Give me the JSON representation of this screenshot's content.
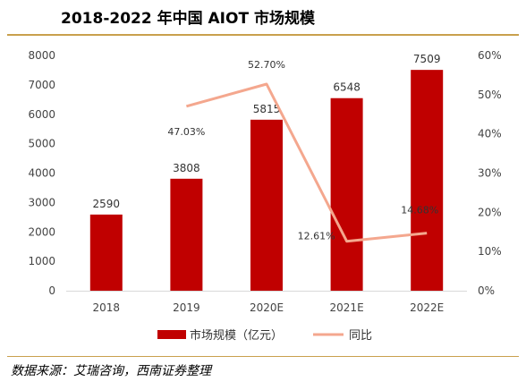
{
  "title": "2018-2022 年中国 AIOT 市场规模",
  "source": "数据来源：艾瑞咨询，西南证券整理",
  "colors": {
    "bar": "#c00000",
    "line": "#f4a78e",
    "rule": "#c9a04d"
  },
  "chart_data": {
    "type": "bar",
    "categories": [
      "2018",
      "2019",
      "2020E",
      "2021E",
      "2022E"
    ],
    "series": [
      {
        "name": "市场规模（亿元）",
        "type": "bar",
        "axis": "left",
        "values": [
          2590,
          3808,
          5815,
          6548,
          7509
        ],
        "labels": [
          "2590",
          "3808",
          "5815",
          "6548",
          "7509"
        ]
      },
      {
        "name": "同比",
        "type": "line",
        "axis": "right",
        "values": [
          null,
          47.03,
          52.7,
          12.61,
          14.68
        ],
        "labels": [
          "",
          "47.03%",
          "52.70%",
          "12.61%",
          "14.68%"
        ]
      }
    ],
    "y_left": {
      "ylim": [
        0,
        8000
      ],
      "ticks": [
        "0",
        "1000",
        "2000",
        "3000",
        "4000",
        "5000",
        "6000",
        "7000",
        "8000"
      ]
    },
    "y_right": {
      "ylim": [
        0,
        60
      ],
      "ticks": [
        "0%",
        "10%",
        "20%",
        "30%",
        "40%",
        "50%",
        "60%"
      ]
    },
    "legend_position": "bottom",
    "grid": false
  }
}
